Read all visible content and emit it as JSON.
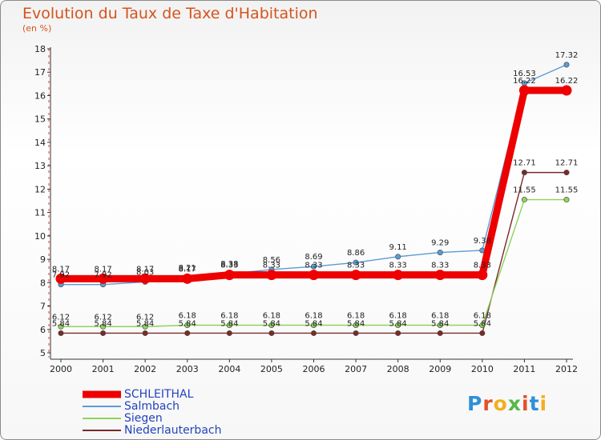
{
  "title": "Evolution du Taux de Taxe d'Habitation",
  "subtitle": "(en %)",
  "logo": {
    "letters": [
      {
        "ch": "P",
        "color": "#2f8fd8"
      },
      {
        "ch": "r",
        "color": "#e3502a"
      },
      {
        "ch": "o",
        "color": "#f2b01e"
      },
      {
        "ch": "x",
        "color": "#56b848"
      },
      {
        "ch": "i",
        "color": "#e3502a"
      },
      {
        "ch": "t",
        "color": "#2f8fd8"
      },
      {
        "ch": "i",
        "color": "#f2b01e"
      }
    ]
  },
  "chart_data": {
    "type": "line",
    "title": "Evolution du Taux de Taxe d'Habitation",
    "subtitle": "(en %)",
    "x": [
      "2000",
      "2001",
      "2002",
      "2003",
      "2004",
      "2005",
      "2006",
      "2007",
      "2008",
      "2009",
      "2010",
      "2011",
      "2012"
    ],
    "ylim": [
      5,
      18
    ],
    "yticks": [
      5,
      6,
      7,
      8,
      9,
      10,
      11,
      12,
      13,
      14,
      15,
      16,
      17,
      18
    ],
    "grid": false,
    "legend": "bottom-left",
    "series": [
      {
        "name": "SCHLEITHAL",
        "color": "#ee0000",
        "values": [
          8.17,
          8.17,
          8.17,
          8.17,
          8.33,
          8.33,
          8.33,
          8.33,
          8.33,
          8.33,
          8.33,
          16.22,
          16.22
        ],
        "labels": [
          "8.17",
          "8.17",
          "8.17",
          "8.17",
          "8.33",
          "8.33",
          "8.33",
          "8.33",
          "8.33",
          "8.33",
          "8.33",
          "16.22",
          "16.22"
        ]
      },
      {
        "name": "Salmbach",
        "color": "#5b9bd5",
        "values": [
          7.92,
          7.92,
          8.03,
          8.21,
          8.38,
          8.56,
          8.69,
          8.86,
          9.11,
          9.29,
          9.38,
          16.53,
          17.32
        ],
        "labels": [
          "7.92",
          "7.92",
          "8.03",
          "8.21",
          "8.38",
          "8.56",
          "8.69",
          "8.86",
          "9.11",
          "9.29",
          "9.38",
          "16.53",
          "17.32"
        ]
      },
      {
        "name": "Siegen",
        "color": "#8ed45c",
        "values": [
          6.12,
          6.12,
          6.12,
          6.18,
          6.18,
          6.18,
          6.18,
          6.18,
          6.18,
          6.18,
          6.18,
          11.55,
          11.55
        ],
        "labels": [
          "6.12",
          "6.12",
          "6.12",
          "6.18",
          "6.18",
          "6.18",
          "6.18",
          "6.18",
          "6.18",
          "6.18",
          "6.18",
          "11.55",
          "11.55"
        ]
      },
      {
        "name": "Niederlauterbach",
        "color": "#7a2a2a",
        "values": [
          5.84,
          5.84,
          5.84,
          5.84,
          5.84,
          5.84,
          5.84,
          5.84,
          5.84,
          5.84,
          5.84,
          12.71,
          12.71
        ],
        "labels": [
          "5.84",
          "5.84",
          "5.84",
          "5.84",
          "5.84",
          "5.84",
          "5.84",
          "5.84",
          "5.84",
          "5.84",
          "5.84",
          "12.71",
          "12.71"
        ]
      }
    ]
  }
}
